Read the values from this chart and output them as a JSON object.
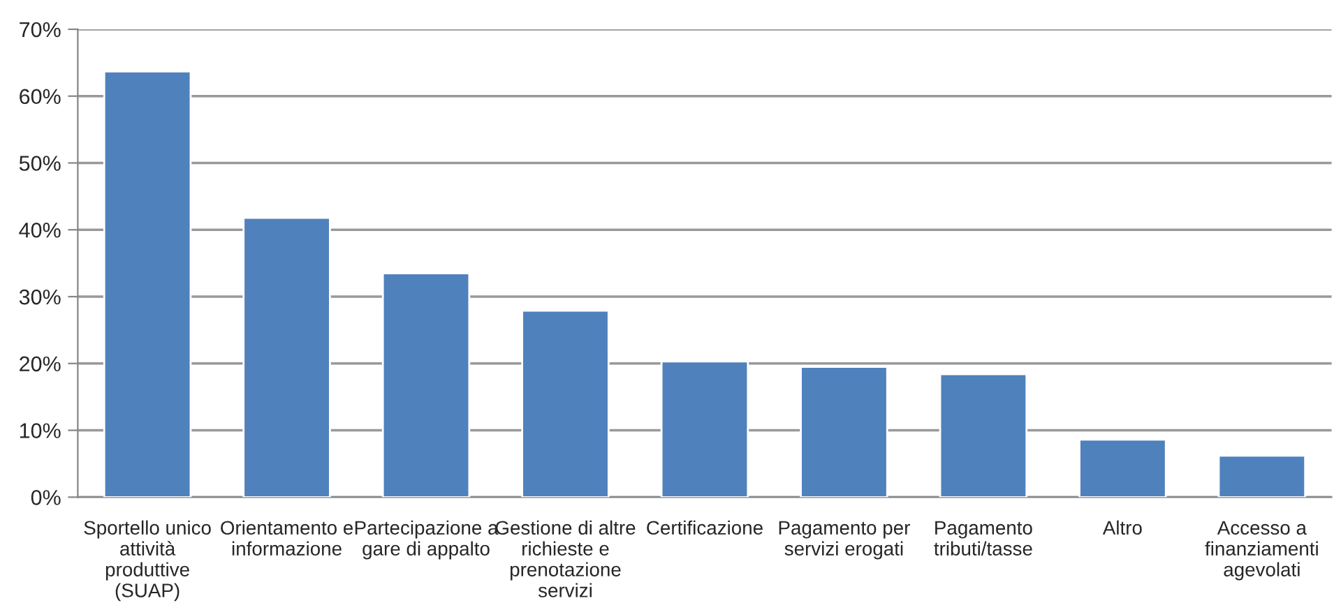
{
  "chart_data": {
    "type": "bar",
    "categories": [
      "Sportello unico\nattività\nproduttive\n(SUAP)",
      "Orientamento e\ninformazione",
      "Partecipazione a\ngare di appalto",
      "Gestione di altre\nrichieste e\nprenotazione\nservizi",
      "Certificazione",
      "Pagamento per\nservizi erogati",
      "Pagamento\ntributi/tasse",
      "Altro",
      "Accesso a\nfinanziamenti\nagevolati"
    ],
    "values": [
      63.7,
      41.8,
      33.5,
      27.9,
      20.3,
      19.5,
      18.4,
      8.6,
      6.2
    ],
    "color": "#4f81bd",
    "ylim": [
      0,
      70
    ],
    "yticks": [
      {
        "value": 0,
        "label": "0%"
      },
      {
        "value": 10,
        "label": "10%"
      },
      {
        "value": 20,
        "label": "20%"
      },
      {
        "value": 30,
        "label": "30%"
      },
      {
        "value": 40,
        "label": "40%"
      },
      {
        "value": 50,
        "label": "50%"
      },
      {
        "value": 60,
        "label": "60%"
      },
      {
        "value": 70,
        "label": "70%"
      }
    ],
    "grid": "y"
  }
}
